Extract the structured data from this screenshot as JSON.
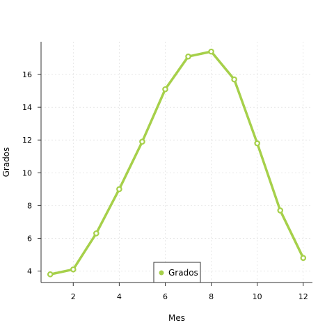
{
  "chart_data": {
    "type": "line",
    "xlabel": "Mes",
    "ylabel": "Grados",
    "x": [
      1,
      2,
      3,
      4,
      5,
      6,
      7,
      8,
      9,
      10,
      11,
      12
    ],
    "series": [
      {
        "name": "Grados",
        "values": [
          3.8,
          4.1,
          6.3,
          9.0,
          11.9,
          15.1,
          17.1,
          17.4,
          15.7,
          11.8,
          7.7,
          4.8
        ]
      }
    ],
    "xlim": [
      0.6,
      12.4
    ],
    "ylim": [
      3.3,
      18.0
    ],
    "xticks": [
      2,
      4,
      6,
      8,
      10,
      12
    ],
    "yticks": [
      4,
      6,
      8,
      10,
      12,
      14,
      16
    ],
    "xtick_labels": [
      "2",
      "4",
      "6",
      "8",
      "10",
      "12"
    ],
    "ytick_labels": [
      "4",
      "6",
      "8",
      "10",
      "12",
      "14",
      "16"
    ],
    "grid": true,
    "legend_position": "bottom-center",
    "colors": {
      "series": "#a6d04a",
      "axis": "#333333",
      "grid": "#d9d9d9"
    }
  }
}
